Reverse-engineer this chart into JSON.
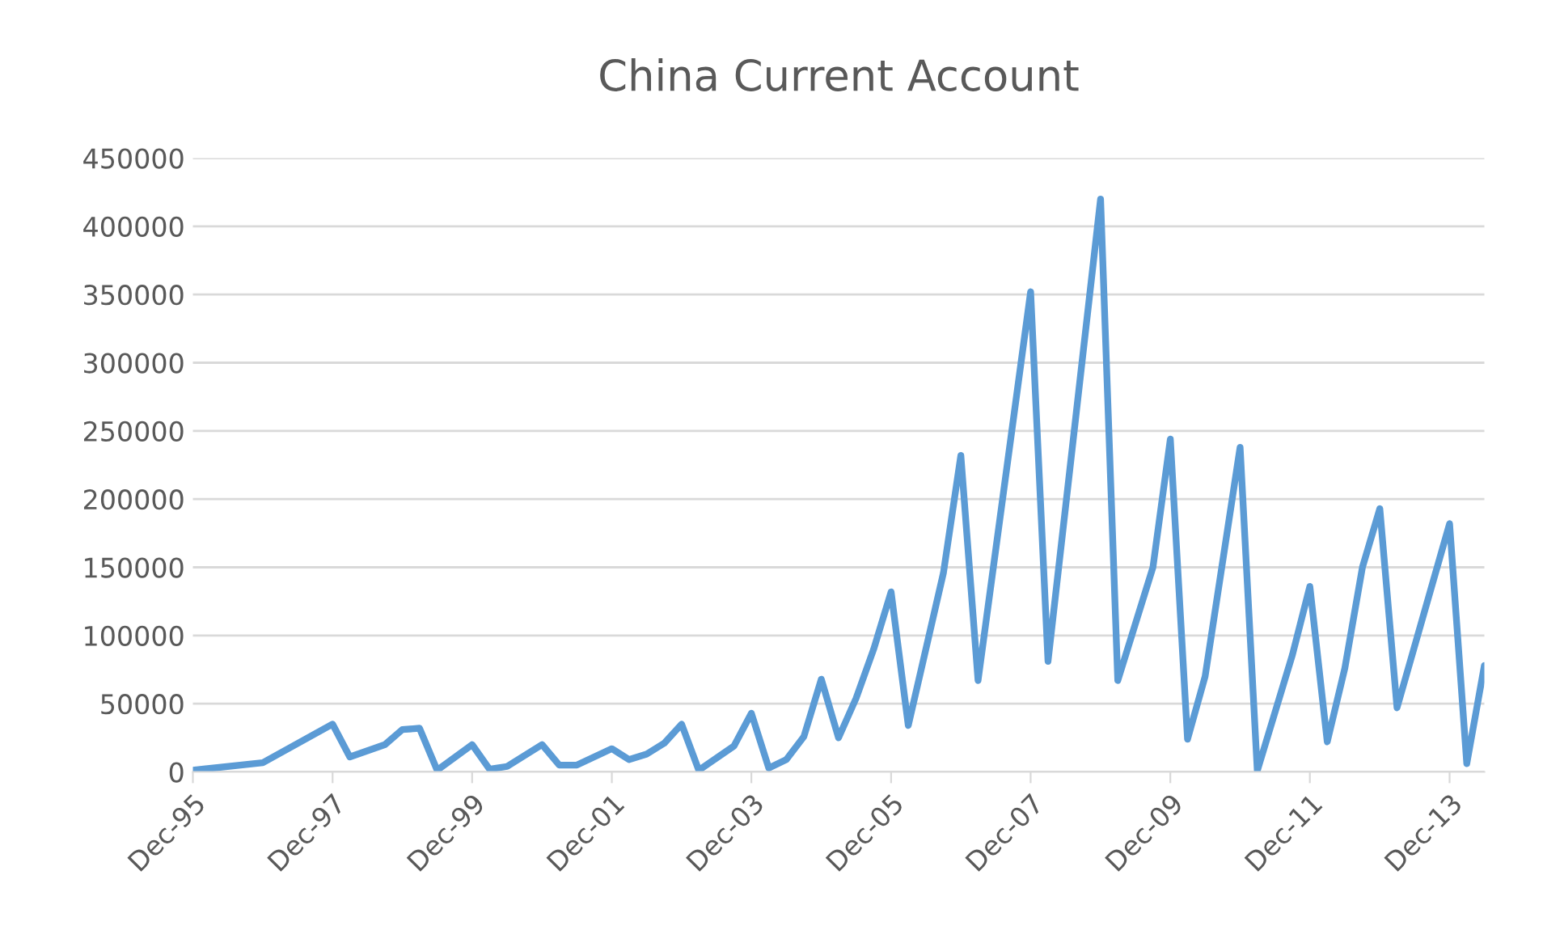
{
  "chart_data": {
    "type": "line",
    "title": "China Current Account",
    "x": [
      "1995-12",
      "1996-12",
      "1997-12",
      "1998-03",
      "1998-09",
      "1998-12",
      "1999-03",
      "1999-06",
      "1999-12",
      "2000-03",
      "2000-06",
      "2000-12",
      "2001-03",
      "2001-06",
      "2001-12",
      "2002-03",
      "2002-06",
      "2002-09",
      "2002-12",
      "2003-03",
      "2003-09",
      "2003-12",
      "2004-03",
      "2004-06",
      "2004-09",
      "2004-12",
      "2005-03",
      "2005-06",
      "2005-09",
      "2005-12",
      "2006-03",
      "2006-09",
      "2006-12",
      "2007-03",
      "2007-12",
      "2008-03",
      "2008-12",
      "2009-03",
      "2009-09",
      "2009-12",
      "2010-03",
      "2010-06",
      "2010-12",
      "2011-03",
      "2011-09",
      "2011-12",
      "2012-03",
      "2012-06",
      "2012-09",
      "2012-12",
      "2013-03",
      "2013-12",
      "2014-03",
      "2014-06"
    ],
    "series": [
      {
        "color": "#5b9bd5",
        "values": [
          1200,
          6800,
          35000,
          11000,
          20000,
          31000,
          32000,
          1200,
          20000,
          2000,
          4000,
          20000,
          5000,
          5000,
          17000,
          9000,
          13000,
          21000,
          35000,
          1200,
          19000,
          43000,
          2800,
          9000,
          26000,
          68000,
          25000,
          54000,
          90000,
          132000,
          34000,
          146000,
          232000,
          67000,
          352000,
          81000,
          420000,
          67000,
          150000,
          244000,
          24000,
          70000,
          238000,
          800,
          86000,
          136000,
          22000,
          76000,
          150000,
          193000,
          47000,
          182000,
          6000,
          78000
        ]
      }
    ],
    "xlim": [
      "1995-12",
      "2014-06"
    ],
    "xticks": [
      {
        "value": "1995-12",
        "label": "Dec-95"
      },
      {
        "value": "1997-12",
        "label": "Dec-97"
      },
      {
        "value": "1999-12",
        "label": "Dec-99"
      },
      {
        "value": "2001-12",
        "label": "Dec-01"
      },
      {
        "value": "2003-12",
        "label": "Dec-03"
      },
      {
        "value": "2005-12",
        "label": "Dec-05"
      },
      {
        "value": "2007-12",
        "label": "Dec-07"
      },
      {
        "value": "2009-12",
        "label": "Dec-09"
      },
      {
        "value": "2011-12",
        "label": "Dec-11"
      },
      {
        "value": "2013-12",
        "label": "Dec-13"
      }
    ],
    "ylim": [
      0,
      450000
    ],
    "yticks": [
      0,
      50000,
      100000,
      150000,
      200000,
      250000,
      300000,
      350000,
      400000,
      450000
    ],
    "grid": "y",
    "legend": false,
    "marker": "none",
    "line_style": "solid"
  }
}
